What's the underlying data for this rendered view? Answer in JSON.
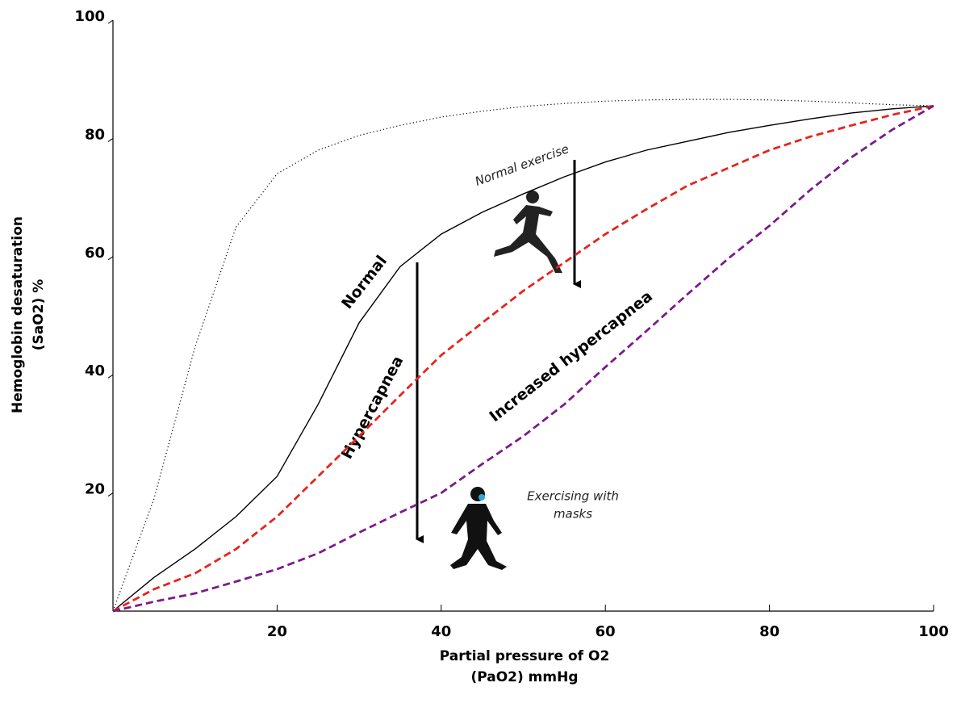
{
  "chart_data": {
    "type": "line",
    "x_label": [
      "Partial pressure of O2",
      "(PaO2) mmHg"
    ],
    "y_label": [
      "Hemoglobin desaturation",
      "(SaO2) %"
    ],
    "annotations": [
      "Normal exercise",
      [
        "Exercising with",
        "masks"
      ]
    ],
    "x": [
      0,
      5,
      10,
      15,
      20,
      25,
      30,
      35,
      40,
      45,
      50,
      55,
      60,
      65,
      70,
      75,
      80,
      85,
      90,
      95,
      100
    ],
    "series": [
      {
        "color": "#000000",
        "dash": "dotted",
        "values": [
          0,
          19,
          44.7,
          65,
          74,
          78,
          80.5,
          82.2,
          83.6,
          84.6,
          85.4,
          85.9,
          86.3,
          86.5,
          86.6,
          86.6,
          86.5,
          86.3,
          86,
          85.7,
          85.5
        ]
      },
      {
        "name": "Normal",
        "color": "#000000",
        "dash": "solid",
        "values": [
          0,
          5.7,
          10.5,
          16,
          22.8,
          35,
          48.8,
          58.3,
          63.8,
          67.5,
          70.6,
          73.5,
          76,
          78,
          79.5,
          81,
          82.2,
          83.3,
          84.3,
          85,
          85.5
        ]
      },
      {
        "name": "Hypercapnea",
        "color": "#e8231c",
        "dash": "dashed",
        "values": [
          0,
          3.7,
          6.4,
          10.5,
          16,
          22.8,
          29.6,
          36.5,
          43.3,
          48.8,
          54.2,
          59,
          63.8,
          68,
          72,
          75,
          78,
          80.3,
          82.2,
          84,
          85.5
        ]
      },
      {
        "name": "Increased  hypercapnea",
        "color": "#7b1a8a",
        "dash": "dashed",
        "values": [
          0,
          1.6,
          3,
          5,
          7.1,
          9.8,
          13.3,
          16.7,
          20,
          24.9,
          29.6,
          35,
          41.3,
          47.4,
          53.6,
          59.7,
          65.2,
          71.3,
          76.8,
          81.5,
          85.5
        ]
      }
    ],
    "xlim": [
      0,
      100
    ],
    "xticks": [
      20,
      40,
      60,
      80,
      100
    ],
    "ylim": [
      0,
      100
    ],
    "yticks": [
      20,
      40,
      60,
      80,
      100
    ]
  }
}
